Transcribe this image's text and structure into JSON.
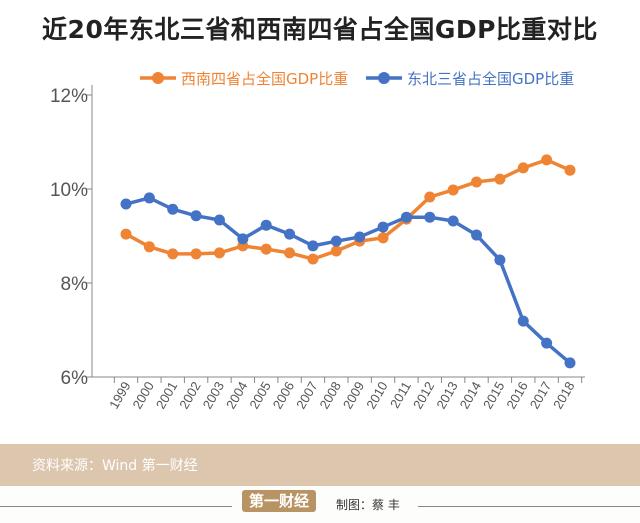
{
  "chart_data": {
    "type": "line",
    "title": "近20年东北三省和西南四省占全国GDP比重对比",
    "x": [
      "1999",
      "2000",
      "2001",
      "2002",
      "2003",
      "2004",
      "2005",
      "2006",
      "2007",
      "2008",
      "2009",
      "2010",
      "2011",
      "2012",
      "2013",
      "2014",
      "2015",
      "2016",
      "2017",
      "2018"
    ],
    "yticks": [
      "6%",
      "8%",
      "10%",
      "12%"
    ],
    "ylim": [
      6,
      12
    ],
    "yunit": "%",
    "grid": false,
    "legend": "top",
    "series": [
      {
        "name": "西南四省占全国GDP比重",
        "color": "#ee8434",
        "values": [
          9.04,
          8.77,
          8.62,
          8.62,
          8.64,
          8.79,
          8.72,
          8.64,
          8.51,
          8.68,
          8.89,
          8.96,
          9.36,
          9.83,
          9.98,
          10.15,
          10.21,
          10.45,
          10.62,
          10.4
        ]
      },
      {
        "name": "东北三省占全国GDP比重",
        "color": "#4472c4",
        "values": [
          9.68,
          9.81,
          9.57,
          9.43,
          9.34,
          8.94,
          9.23,
          9.04,
          8.79,
          8.89,
          8.98,
          9.19,
          9.4,
          9.4,
          9.32,
          9.02,
          8.49,
          7.19,
          6.72,
          6.3
        ]
      }
    ]
  },
  "footer": {
    "source": "资料来源：Wind  第一财经",
    "logo": "第一财经",
    "credit": "制图：蔡 丰"
  },
  "colors": {
    "footer_band": "#dcc6ad",
    "logo": "#b89464"
  }
}
